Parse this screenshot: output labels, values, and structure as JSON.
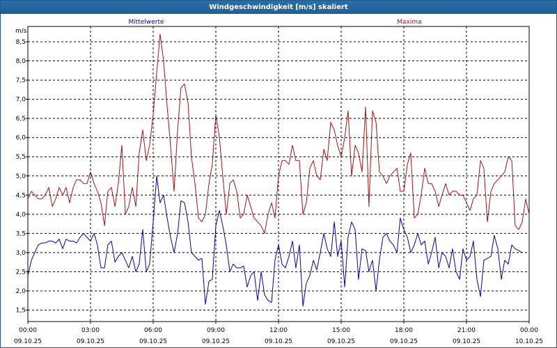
{
  "window": {
    "title": "Windgeschwindigkeit [m/s] skaliert"
  },
  "colors": {
    "mean": "#0000b0",
    "max": "#aa1010",
    "grid": "#000000",
    "titlebar": "#1f5f96"
  },
  "chart_data": {
    "type": "line",
    "title": "Windgeschwindigkeit [m/s] skaliert",
    "ylabel": "m/s",
    "xlabel": "",
    "ylim": [
      1.2,
      8.9
    ],
    "xlim_hours": [
      0,
      24
    ],
    "yticks": [
      "1,5",
      "2,0",
      "2,5",
      "3,0",
      "3,5",
      "4,0",
      "4,5",
      "5,0",
      "5,5",
      "6,0",
      "6,5",
      "7,0",
      "7,5",
      "8,0",
      "8,5"
    ],
    "ytick_values": [
      1.5,
      2.0,
      2.5,
      3.0,
      3.5,
      4.0,
      4.5,
      5.0,
      5.5,
      6.0,
      6.5,
      7.0,
      7.5,
      8.0,
      8.5
    ],
    "xticks": [
      {
        "time": "00:00",
        "date": "09.10.25",
        "hour": 0
      },
      {
        "time": "03:00",
        "date": "09.10.25",
        "hour": 3
      },
      {
        "time": "06:00",
        "date": "09.10.25",
        "hour": 6
      },
      {
        "time": "09:00",
        "date": "09.10.25",
        "hour": 9
      },
      {
        "time": "12:00",
        "date": "09.10.25",
        "hour": 12
      },
      {
        "time": "15:00",
        "date": "09.10.25",
        "hour": 15
      },
      {
        "time": "18:00",
        "date": "09.10.25",
        "hour": 18
      },
      {
        "time": "21:00",
        "date": "09.10.25",
        "hour": 21
      },
      {
        "time": "00:00",
        "date": "10.10.25",
        "hour": 24
      }
    ],
    "grid": true,
    "series": [
      {
        "name": "Mittelwerte",
        "legend": "top-left",
        "points": [
          [
            0,
            2.4
          ],
          [
            0.17,
            2.8
          ],
          [
            0.33,
            3.0
          ],
          [
            0.5,
            3.2
          ],
          [
            0.67,
            3.25
          ],
          [
            0.83,
            3.25
          ],
          [
            1,
            3.3
          ],
          [
            1.17,
            3.3
          ],
          [
            1.33,
            3.25
          ],
          [
            1.5,
            3.35
          ],
          [
            1.67,
            3.1
          ],
          [
            1.83,
            3.35
          ],
          [
            2,
            3.3
          ],
          [
            2.17,
            3.3
          ],
          [
            2.33,
            3.25
          ],
          [
            2.5,
            3.4
          ],
          [
            2.67,
            3.5
          ],
          [
            2.83,
            3.4
          ],
          [
            3,
            3.3
          ],
          [
            3.17,
            3.5
          ],
          [
            3.33,
            3.2
          ],
          [
            3.5,
            2.6
          ],
          [
            3.67,
            2.6
          ],
          [
            3.83,
            3.2
          ],
          [
            4,
            3.3
          ],
          [
            4.17,
            2.75
          ],
          [
            4.33,
            2.9
          ],
          [
            4.5,
            3.0
          ],
          [
            4.67,
            2.8
          ],
          [
            4.83,
            2.6
          ],
          [
            5,
            2.9
          ],
          [
            5.17,
            2.5
          ],
          [
            5.33,
            2.7
          ],
          [
            5.5,
            3.6
          ],
          [
            5.67,
            2.5
          ],
          [
            5.83,
            2.7
          ],
          [
            6,
            3.8
          ],
          [
            6.17,
            5.0
          ],
          [
            6.33,
            4.3
          ],
          [
            6.5,
            4.5
          ],
          [
            6.67,
            3.9
          ],
          [
            6.83,
            3.4
          ],
          [
            7,
            3.0
          ],
          [
            7.17,
            3.5
          ],
          [
            7.33,
            4.35
          ],
          [
            7.5,
            4.3
          ],
          [
            7.67,
            3.8
          ],
          [
            7.83,
            3.0
          ],
          [
            8,
            2.9
          ],
          [
            8.17,
            2.8
          ],
          [
            8.33,
            2.85
          ],
          [
            8.5,
            1.65
          ],
          [
            8.67,
            2.25
          ],
          [
            8.83,
            2.3
          ],
          [
            9,
            3.7
          ],
          [
            9.17,
            4.1
          ],
          [
            9.33,
            3.7
          ],
          [
            9.5,
            3.2
          ],
          [
            9.67,
            2.5
          ],
          [
            9.83,
            2.7
          ],
          [
            10,
            2.6
          ],
          [
            10.17,
            2.6
          ],
          [
            10.33,
            2.65
          ],
          [
            10.5,
            2.1
          ],
          [
            10.67,
            2.4
          ],
          [
            10.83,
            2.5
          ],
          [
            11,
            1.75
          ],
          [
            11.17,
            2.5
          ],
          [
            11.33,
            1.9
          ],
          [
            11.5,
            1.75
          ],
          [
            11.67,
            1.7
          ],
          [
            11.83,
            2.8
          ],
          [
            12,
            3.2
          ],
          [
            12.17,
            2.7
          ],
          [
            12.33,
            2.6
          ],
          [
            12.5,
            2.9
          ],
          [
            12.67,
            3.3
          ],
          [
            12.83,
            2.6
          ],
          [
            13,
            3.2
          ],
          [
            13.17,
            1.6
          ],
          [
            13.33,
            2.2
          ],
          [
            13.5,
            2.4
          ],
          [
            13.67,
            2.8
          ],
          [
            13.83,
            2.55
          ],
          [
            14,
            3.0
          ],
          [
            14.17,
            3.5
          ],
          [
            14.33,
            3.1
          ],
          [
            14.5,
            2.9
          ],
          [
            14.67,
            3.8
          ],
          [
            14.83,
            2.9
          ],
          [
            15,
            3.3
          ],
          [
            15.17,
            2.1
          ],
          [
            15.33,
            3.4
          ],
          [
            15.5,
            3.8
          ],
          [
            15.67,
            3.6
          ],
          [
            15.83,
            2.3
          ],
          [
            16,
            3.1
          ],
          [
            16.17,
            3.05
          ],
          [
            16.33,
            2.5
          ],
          [
            16.5,
            2.8
          ],
          [
            16.67,
            2.0
          ],
          [
            16.83,
            2.8
          ],
          [
            17,
            3.4
          ],
          [
            17.17,
            3.5
          ],
          [
            17.33,
            3.3
          ],
          [
            17.5,
            3.2
          ],
          [
            17.67,
            3.0
          ],
          [
            17.83,
            3.9
          ],
          [
            18,
            3.6
          ],
          [
            18.17,
            3.4
          ],
          [
            18.33,
            3.0
          ],
          [
            18.5,
            3.2
          ],
          [
            18.67,
            3.5
          ],
          [
            18.83,
            3.2
          ],
          [
            19,
            3.3
          ],
          [
            19.17,
            2.7
          ],
          [
            19.33,
            3.0
          ],
          [
            19.5,
            3.4
          ],
          [
            19.67,
            2.6
          ],
          [
            19.83,
            3.0
          ],
          [
            20,
            2.9
          ],
          [
            20.17,
            2.6
          ],
          [
            20.33,
            3.1
          ],
          [
            20.5,
            2.5
          ],
          [
            20.67,
            2.3
          ],
          [
            20.83,
            3.1
          ],
          [
            21,
            2.8
          ],
          [
            21.17,
            2.9
          ],
          [
            21.33,
            3.3
          ],
          [
            21.5,
            2.3
          ],
          [
            21.67,
            1.85
          ],
          [
            21.83,
            2.8
          ],
          [
            22,
            2.85
          ],
          [
            22.17,
            2.9
          ],
          [
            22.33,
            3.45
          ],
          [
            22.5,
            3.1
          ],
          [
            22.67,
            2.3
          ],
          [
            22.83,
            2.8
          ],
          [
            23,
            2.7
          ],
          [
            23.17,
            3.2
          ],
          [
            23.33,
            3.1
          ],
          [
            23.5,
            3.05
          ],
          [
            23.67,
            3.0
          ]
        ]
      },
      {
        "name": "Maxima",
        "legend": "top-right",
        "points": [
          [
            0,
            4.4
          ],
          [
            0.17,
            4.6
          ],
          [
            0.33,
            4.5
          ],
          [
            0.5,
            4.4
          ],
          [
            0.67,
            4.4
          ],
          [
            0.83,
            4.5
          ],
          [
            1,
            4.7
          ],
          [
            1.17,
            4.2
          ],
          [
            1.33,
            4.4
          ],
          [
            1.5,
            4.7
          ],
          [
            1.67,
            4.5
          ],
          [
            1.83,
            4.7
          ],
          [
            2,
            4.3
          ],
          [
            2.17,
            4.7
          ],
          [
            2.33,
            4.9
          ],
          [
            2.5,
            4.9
          ],
          [
            2.67,
            4.8
          ],
          [
            2.83,
            4.8
          ],
          [
            3,
            5.1
          ],
          [
            3.17,
            4.8
          ],
          [
            3.33,
            4.6
          ],
          [
            3.5,
            4.3
          ],
          [
            3.67,
            3.7
          ],
          [
            3.83,
            4.6
          ],
          [
            4,
            4.7
          ],
          [
            4.17,
            4.2
          ],
          [
            4.33,
            4.8
          ],
          [
            4.5,
            5.8
          ],
          [
            4.67,
            4.0
          ],
          [
            4.83,
            4.2
          ],
          [
            5,
            4.7
          ],
          [
            5.17,
            4.2
          ],
          [
            5.33,
            5.6
          ],
          [
            5.5,
            6.2
          ],
          [
            5.67,
            5.4
          ],
          [
            5.83,
            5.8
          ],
          [
            6,
            6.6
          ],
          [
            6.17,
            7.7
          ],
          [
            6.33,
            8.7
          ],
          [
            6.5,
            8.0
          ],
          [
            6.67,
            6.8
          ],
          [
            6.83,
            5.8
          ],
          [
            7,
            4.6
          ],
          [
            7.17,
            6.2
          ],
          [
            7.33,
            7.3
          ],
          [
            7.5,
            7.4
          ],
          [
            7.67,
            6.9
          ],
          [
            7.83,
            5.5
          ],
          [
            8,
            4.8
          ],
          [
            8.17,
            3.9
          ],
          [
            8.33,
            3.8
          ],
          [
            8.5,
            4.0
          ],
          [
            8.67,
            4.8
          ],
          [
            8.83,
            5.3
          ],
          [
            9,
            6.6
          ],
          [
            9.17,
            6.0
          ],
          [
            9.33,
            5.0
          ],
          [
            9.5,
            4.0
          ],
          [
            9.67,
            4.8
          ],
          [
            9.83,
            4.9
          ],
          [
            10,
            4.6
          ],
          [
            10.17,
            3.9
          ],
          [
            10.33,
            4.0
          ],
          [
            10.5,
            4.5
          ],
          [
            10.67,
            4.2
          ],
          [
            10.83,
            3.9
          ],
          [
            11,
            3.8
          ],
          [
            11.17,
            3.7
          ],
          [
            11.33,
            3.5
          ],
          [
            11.5,
            4.0
          ],
          [
            11.67,
            4.3
          ],
          [
            11.83,
            3.9
          ],
          [
            12,
            5.0
          ],
          [
            12.17,
            5.4
          ],
          [
            12.33,
            5.4
          ],
          [
            12.5,
            5.3
          ],
          [
            12.67,
            5.8
          ],
          [
            12.83,
            5.4
          ],
          [
            13,
            5.4
          ],
          [
            13.17,
            4.0
          ],
          [
            13.33,
            4.3
          ],
          [
            13.5,
            5.2
          ],
          [
            13.67,
            5.4
          ],
          [
            13.83,
            5.0
          ],
          [
            14,
            4.9
          ],
          [
            14.17,
            5.7
          ],
          [
            14.33,
            5.4
          ],
          [
            14.5,
            6.4
          ],
          [
            14.67,
            6.2
          ],
          [
            14.83,
            5.8
          ],
          [
            15,
            5.5
          ],
          [
            15.17,
            6.0
          ],
          [
            15.33,
            6.7
          ],
          [
            15.5,
            5.0
          ],
          [
            15.67,
            5.8
          ],
          [
            15.83,
            5.6
          ],
          [
            16,
            5.1
          ],
          [
            16.17,
            6.8
          ],
          [
            16.33,
            4.2
          ],
          [
            16.5,
            6.7
          ],
          [
            16.67,
            6.4
          ],
          [
            16.83,
            5.1
          ],
          [
            17,
            5.0
          ],
          [
            17.17,
            4.8
          ],
          [
            17.33,
            5.0
          ],
          [
            17.5,
            5.1
          ],
          [
            17.67,
            5.2
          ],
          [
            17.83,
            4.6
          ],
          [
            18,
            4.6
          ],
          [
            18.17,
            5.3
          ],
          [
            18.33,
            5.6
          ],
          [
            18.5,
            3.9
          ],
          [
            18.67,
            4.0
          ],
          [
            18.83,
            4.5
          ],
          [
            19,
            5.2
          ],
          [
            19.17,
            4.8
          ],
          [
            19.33,
            4.8
          ],
          [
            19.5,
            4.6
          ],
          [
            19.67,
            4.2
          ],
          [
            19.83,
            4.5
          ],
          [
            20,
            4.8
          ],
          [
            20.17,
            4.5
          ],
          [
            20.33,
            4.6
          ],
          [
            20.5,
            4.6
          ],
          [
            20.67,
            4.5
          ],
          [
            20.83,
            4.5
          ],
          [
            21,
            4.3
          ],
          [
            21.17,
            4.1
          ],
          [
            21.33,
            4.4
          ],
          [
            21.5,
            4.5
          ],
          [
            21.67,
            5.4
          ],
          [
            21.83,
            5.2
          ],
          [
            22,
            3.8
          ],
          [
            22.17,
            4.6
          ],
          [
            22.33,
            4.8
          ],
          [
            22.5,
            4.9
          ],
          [
            22.67,
            5.0
          ],
          [
            22.83,
            5.1
          ],
          [
            23,
            5.5
          ],
          [
            23.17,
            5.4
          ],
          [
            23.33,
            3.7
          ],
          [
            23.5,
            3.6
          ],
          [
            23.67,
            3.8
          ],
          [
            23.83,
            4.4
          ],
          [
            24,
            4.0
          ]
        ]
      }
    ]
  }
}
